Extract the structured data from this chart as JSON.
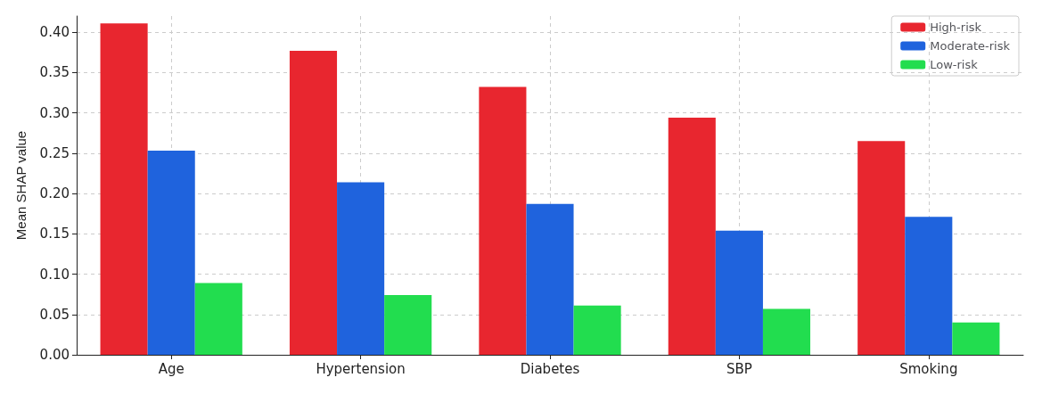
{
  "chart_data": {
    "type": "bar",
    "ylabel": "Mean SHAP value",
    "categories": [
      "Age",
      "Hypertension",
      "Diabetes",
      "SBP",
      "Smoking"
    ],
    "series": [
      {
        "name": "High-risk",
        "color": "#e8262f",
        "values": [
          0.411,
          0.377,
          0.332,
          0.294,
          0.265
        ]
      },
      {
        "name": "Moderate-risk",
        "color": "#1f63dd",
        "values": [
          0.253,
          0.214,
          0.187,
          0.154,
          0.171
        ]
      },
      {
        "name": "Low-risk",
        "color": "#22dd4f",
        "values": [
          0.089,
          0.074,
          0.061,
          0.057,
          0.04
        ]
      }
    ],
    "ylim": [
      0,
      0.42
    ],
    "yticks": [
      {
        "value": 0,
        "label": "0.00"
      },
      {
        "value": 0.05,
        "label": "0.05"
      },
      {
        "value": 0.1,
        "label": "0.10"
      },
      {
        "value": 0.15,
        "label": "0.15"
      },
      {
        "value": 0.2,
        "label": "0.20"
      },
      {
        "value": 0.25,
        "label": "0.25"
      },
      {
        "value": 0.3,
        "label": "0.30"
      },
      {
        "value": 0.35,
        "label": "0.35"
      },
      {
        "value": 0.4,
        "label": "0.40"
      }
    ],
    "grid": true,
    "legend": "top right"
  }
}
